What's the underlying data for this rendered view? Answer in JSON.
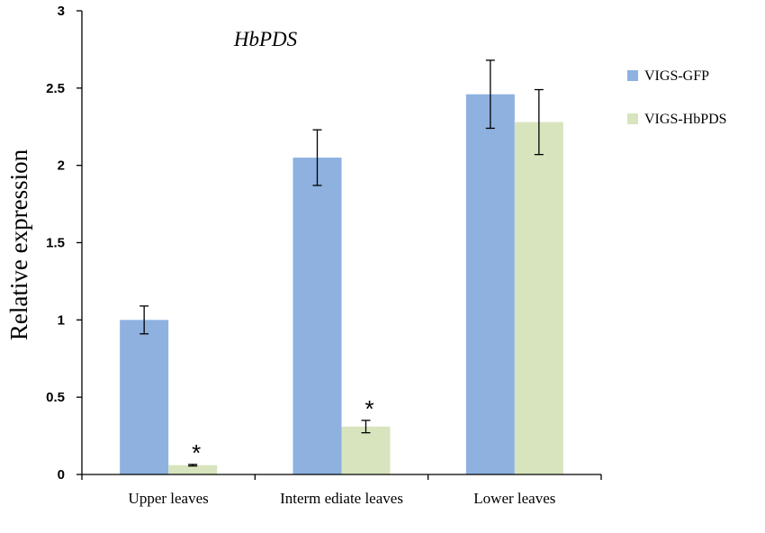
{
  "chart_data": {
    "type": "bar",
    "title": "HbPDS",
    "xlabel": "",
    "ylabel": "Relative expression",
    "ylim": [
      0,
      3
    ],
    "yticks": [
      "0",
      "0.5",
      "1",
      "1.5",
      "2",
      "2.5",
      "3"
    ],
    "categories": [
      "Upper leaves",
      "Interm ediate leaves",
      "Lower leaves"
    ],
    "series": [
      {
        "name": "VIGS-GFP",
        "color": "#8eb1e0",
        "values": [
          1.0,
          2.05,
          2.46
        ],
        "errors": [
          0.09,
          0.18,
          0.22
        ]
      },
      {
        "name": "VIGS-HbPDS",
        "color": "#d7e4bd",
        "values": [
          0.06,
          0.31,
          2.28
        ],
        "errors": [
          0.005,
          0.04,
          0.21
        ]
      }
    ],
    "annotations": [
      {
        "category": "Upper leaves",
        "series": "VIGS-HbPDS",
        "text": "*"
      },
      {
        "category": "Interm ediate leaves",
        "series": "VIGS-HbPDS",
        "text": "*"
      }
    ],
    "grid": false,
    "legend_position": "right"
  }
}
